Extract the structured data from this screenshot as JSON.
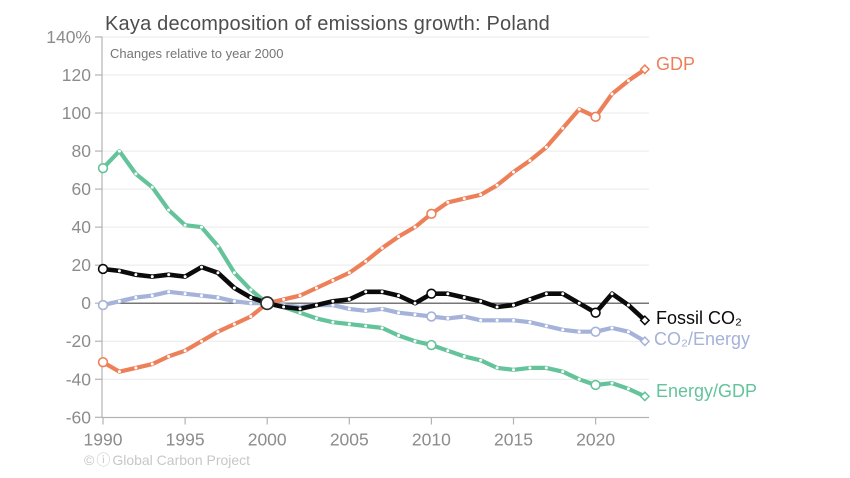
{
  "header": {
    "title": "Kaya decomposition of emissions growth: Poland",
    "subtitle": "Changes relative to year 2000"
  },
  "footer": {
    "cc_icon": "©",
    "by_icon": "ⓘ",
    "attribution": "Global Carbon Project"
  },
  "colors": {
    "background": "#ffffff",
    "title": "#4d4d4d",
    "subtitle": "#757575",
    "tick_label": "#8c8c8c",
    "axis": "#b3b3b3",
    "grid": "#e9e9e9",
    "zero_line": "#4a4a4a",
    "attribution": "#c7c7c7",
    "gdp": "#ED8059",
    "fossil_co2": "#0b0b0b",
    "co2_energy": "#A5B2D9",
    "energy_gdp": "#64C39B"
  },
  "chart_data": {
    "type": "line",
    "title": "Kaya decomposition of emissions growth: Poland",
    "subtitle": "Changes relative to year 2000",
    "xlabel": "",
    "ylabel": "%",
    "ylim": [
      -60,
      140
    ],
    "grid": true,
    "legend_position": "right-end-labels",
    "x": [
      1990,
      1991,
      1992,
      1993,
      1994,
      1995,
      1996,
      1997,
      1998,
      1999,
      2000,
      2001,
      2002,
      2003,
      2004,
      2005,
      2006,
      2007,
      2008,
      2009,
      2010,
      2011,
      2012,
      2013,
      2014,
      2015,
      2016,
      2017,
      2018,
      2019,
      2020,
      2021,
      2022,
      2023
    ],
    "x_tick_labels": [
      "1990",
      "1995",
      "2000",
      "2005",
      "2010",
      "2015",
      "2020"
    ],
    "x_tick_values": [
      1990,
      1995,
      2000,
      2005,
      2010,
      2015,
      2020
    ],
    "y_tick_labels": [
      "140%",
      "120",
      "100",
      "80",
      "60",
      "40",
      "20",
      "0",
      "-20",
      "-40",
      "-60"
    ],
    "y_tick_values": [
      140,
      120,
      100,
      80,
      60,
      40,
      20,
      0,
      -20,
      -40,
      -60
    ],
    "marker_years": [
      1990,
      2010,
      2020
    ],
    "converge_year": 2000,
    "series": [
      {
        "name": "gdp",
        "label": "GDP",
        "color": "#ED8059",
        "values": [
          -31,
          -36,
          -34,
          -32,
          -28,
          -25,
          -20,
          -15,
          -11,
          -7,
          0,
          2,
          4,
          8,
          12,
          16,
          22,
          29,
          35,
          40,
          47,
          53,
          55,
          57,
          62,
          69,
          75,
          82,
          92,
          102,
          98,
          110,
          117,
          123
        ]
      },
      {
        "name": "fossil-co2",
        "label": "Fossil CO₂",
        "color": "#0b0b0b",
        "values": [
          18,
          17,
          15,
          14,
          15,
          14,
          19,
          16,
          8,
          3,
          0,
          -2,
          -3,
          -1,
          1,
          2,
          6,
          6,
          4,
          0,
          5,
          5,
          3,
          1,
          -2,
          -1,
          2,
          5,
          5,
          0,
          -5,
          5,
          -1,
          -9
        ]
      },
      {
        "name": "co2-energy",
        "label": "CO₂/Energy",
        "color": "#A5B2D9",
        "values": [
          -1,
          1,
          3,
          4,
          6,
          5,
          4,
          3,
          1,
          0,
          0,
          -1,
          -2,
          -1,
          -1,
          -3,
          -4,
          -3,
          -5,
          -6,
          -7,
          -8,
          -7,
          -9,
          -9,
          -9,
          -10,
          -12,
          -14,
          -15,
          -15,
          -13,
          -15,
          -20
        ]
      },
      {
        "name": "energy-gdp",
        "label": "Energy/GDP",
        "color": "#64C39B",
        "values": [
          71,
          80,
          68,
          61,
          49,
          41,
          40,
          30,
          16,
          7,
          0,
          -2,
          -5,
          -8,
          -10,
          -11,
          -12,
          -13,
          -17,
          -20,
          -22,
          -25,
          -28,
          -30,
          -34,
          -35,
          -34,
          -34,
          -36,
          -40,
          -43,
          -42,
          -45,
          -49
        ]
      }
    ]
  }
}
